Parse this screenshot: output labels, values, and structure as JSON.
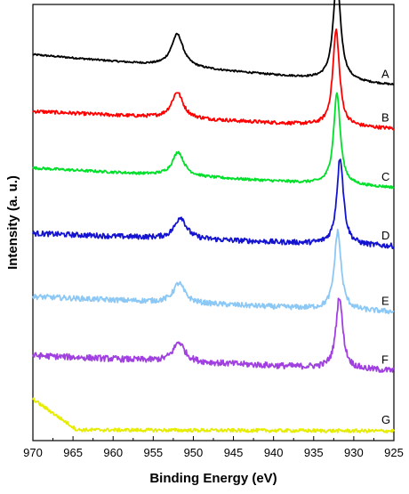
{
  "chart_data": {
    "type": "line",
    "title": "",
    "xlabel": "Binding Energy (eV)",
    "ylabel": "Intensity (a. u.)",
    "x_reversed": true,
    "xlim": [
      970,
      925
    ],
    "x_ticks": [
      970,
      965,
      960,
      955,
      950,
      945,
      940,
      935,
      930,
      925
    ],
    "y_ticks_shown": false,
    "grid": false,
    "legend": "none",
    "series": [
      {
        "name": "A",
        "color": "#000000",
        "offset": 0.885,
        "baseline_left": 0.0,
        "baseline_right": -0.07,
        "noise": 0.002,
        "peaks": [
          {
            "center": 952.0,
            "height": 0.075,
            "width": 0.9
          },
          {
            "center": 932.1,
            "height": 0.235,
            "width": 0.55
          }
        ]
      },
      {
        "name": "B",
        "color": "#ff0000",
        "offset": 0.755,
        "baseline_left": 0.0,
        "baseline_right": -0.04,
        "noise": 0.004,
        "peaks": [
          {
            "center": 952.0,
            "height": 0.06,
            "width": 0.85
          },
          {
            "center": 932.2,
            "height": 0.22,
            "width": 0.5
          }
        ]
      },
      {
        "name": "C",
        "color": "#00e02a",
        "offset": 0.625,
        "baseline_left": 0.0,
        "baseline_right": -0.045,
        "noise": 0.003,
        "peaks": [
          {
            "center": 951.9,
            "height": 0.055,
            "width": 0.85
          },
          {
            "center": 932.1,
            "height": 0.21,
            "width": 0.5
          }
        ]
      },
      {
        "name": "D",
        "color": "#1414d0",
        "offset": 0.475,
        "baseline_left": 0.0,
        "baseline_right": -0.03,
        "noise": 0.006,
        "peaks": [
          {
            "center": 951.6,
            "height": 0.05,
            "width": 0.85
          },
          {
            "center": 931.7,
            "height": 0.2,
            "width": 0.5
          }
        ]
      },
      {
        "name": "E",
        "color": "#8cc8f5",
        "offset": 0.33,
        "baseline_left": 0.0,
        "baseline_right": -0.035,
        "noise": 0.006,
        "peaks": [
          {
            "center": 951.8,
            "height": 0.045,
            "width": 0.85
          },
          {
            "center": 932.0,
            "height": 0.18,
            "width": 0.5
          }
        ]
      },
      {
        "name": "F",
        "color": "#a040e0",
        "offset": 0.195,
        "baseline_left": 0.0,
        "baseline_right": -0.035,
        "noise": 0.007,
        "peaks": [
          {
            "center": 951.8,
            "height": 0.045,
            "width": 0.85
          },
          {
            "center": 931.8,
            "height": 0.165,
            "width": 0.5
          }
        ]
      },
      {
        "name": "G",
        "color": "#e6ec00",
        "offset": 0.025,
        "baseline_left": 0.0,
        "baseline_right": -0.003,
        "noise": 0.004,
        "rising_edge": {
          "from": 970,
          "to": 964.5,
          "height": 0.07
        },
        "peaks": []
      }
    ]
  }
}
